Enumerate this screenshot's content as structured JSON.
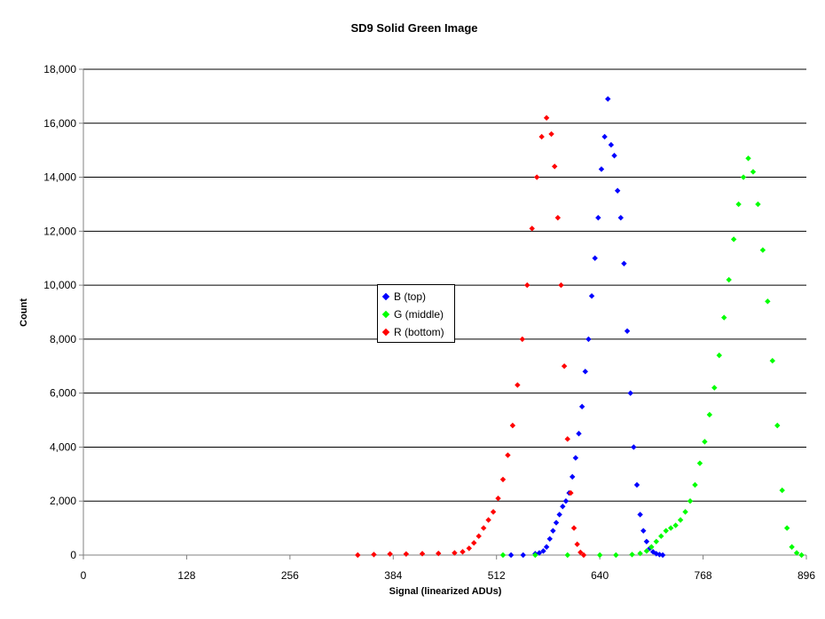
{
  "chart_data": {
    "type": "scatter",
    "title": "SD9 Solid Green Image",
    "xlabel": "Signal (linearized ADUs)",
    "ylabel": "Count",
    "xlim": [
      0,
      896
    ],
    "ylim": [
      0,
      18000
    ],
    "xticks": [
      0,
      128,
      256,
      384,
      512,
      640,
      768,
      896
    ],
    "xtick_labels": [
      "0",
      "128",
      "256",
      "384",
      "512",
      "640",
      "768",
      "896"
    ],
    "yticks": [
      0,
      2000,
      4000,
      6000,
      8000,
      10000,
      12000,
      14000,
      16000,
      18000
    ],
    "ytick_labels": [
      "0",
      "2,000",
      "4,000",
      "6,000",
      "8,000",
      "10,000",
      "12,000",
      "14,000",
      "16,000",
      "18,000"
    ],
    "grid": "horizontal major gridlines",
    "legend_position": "center",
    "marker": "diamond",
    "series": [
      {
        "name": "B (top)",
        "color": "#0000ff",
        "x": [
          530,
          545,
          560,
          565,
          570,
          574,
          578,
          582,
          586,
          590,
          594,
          598,
          602,
          606,
          610,
          614,
          618,
          622,
          626,
          630,
          634,
          638,
          642,
          646,
          650,
          654,
          658,
          662,
          666,
          670,
          674,
          678,
          682,
          686,
          690,
          694,
          698,
          702,
          706,
          710,
          714,
          718
        ],
        "y": [
          0,
          0,
          50,
          80,
          150,
          300,
          600,
          900,
          1200,
          1500,
          1800,
          2000,
          2300,
          2900,
          3600,
          4500,
          5500,
          6800,
          8000,
          9600,
          11000,
          12500,
          14300,
          15500,
          16900,
          15200,
          14800,
          13500,
          12500,
          10800,
          8300,
          6000,
          4000,
          2600,
          1500,
          900,
          500,
          250,
          120,
          50,
          20,
          0
        ]
      },
      {
        "name": "G (middle)",
        "color": "#00ff00",
        "x": [
          520,
          560,
          600,
          640,
          660,
          680,
          690,
          698,
          704,
          710,
          716,
          722,
          728,
          734,
          740,
          746,
          752,
          758,
          764,
          770,
          776,
          782,
          788,
          794,
          800,
          806,
          812,
          818,
          824,
          830,
          836,
          842,
          848,
          854,
          860,
          866,
          872,
          878,
          884,
          890
        ],
        "y": [
          0,
          0,
          0,
          0,
          0,
          20,
          60,
          150,
          300,
          500,
          700,
          900,
          1000,
          1100,
          1300,
          1600,
          2000,
          2600,
          3400,
          4200,
          5200,
          6200,
          7400,
          8800,
          10200,
          11700,
          13000,
          14000,
          14700,
          14200,
          13000,
          11300,
          9400,
          7200,
          4800,
          2400,
          1000,
          300,
          80,
          0
        ]
      },
      {
        "name": "R (bottom)",
        "color": "#ff0000",
        "x": [
          340,
          360,
          380,
          400,
          420,
          440,
          460,
          470,
          478,
          484,
          490,
          496,
          502,
          508,
          514,
          520,
          526,
          532,
          538,
          544,
          550,
          556,
          562,
          568,
          574,
          580,
          584,
          588,
          592,
          596,
          600,
          604,
          608,
          612,
          616,
          620
        ],
        "y": [
          0,
          20,
          40,
          40,
          50,
          60,
          80,
          120,
          250,
          450,
          700,
          1000,
          1300,
          1600,
          2100,
          2800,
          3700,
          4800,
          6300,
          8000,
          10000,
          12100,
          14000,
          15500,
          16200,
          15600,
          14400,
          12500,
          10000,
          7000,
          4300,
          2300,
          1000,
          400,
          100,
          0
        ]
      }
    ]
  }
}
